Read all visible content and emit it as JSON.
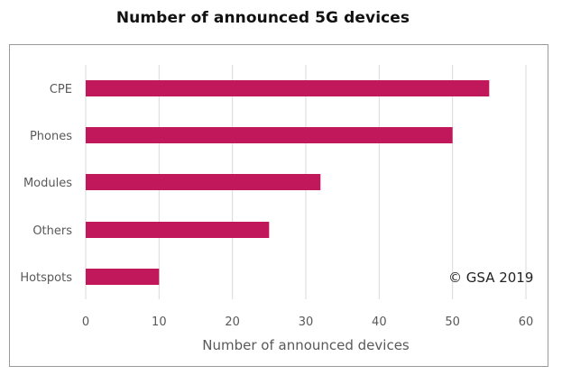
{
  "chart_data": {
    "type": "bar",
    "orientation": "horizontal",
    "title": "Number of announced 5G devices",
    "categories": [
      "CPE",
      "Phones",
      "Modules",
      "Others",
      "Hotspots"
    ],
    "values": [
      55,
      50,
      32,
      25,
      10
    ],
    "xlabel": "Number of announced devices",
    "ylabel": "",
    "xlim": [
      0,
      60
    ],
    "xticks": [
      "0",
      "10",
      "20",
      "30",
      "40",
      "50",
      "60"
    ],
    "grid": true,
    "bar_color": "#c0185a",
    "gridline_color": "#d9d9d9",
    "annotation": "© GSA 2019",
    "annotation_placement": "bottom-right"
  }
}
